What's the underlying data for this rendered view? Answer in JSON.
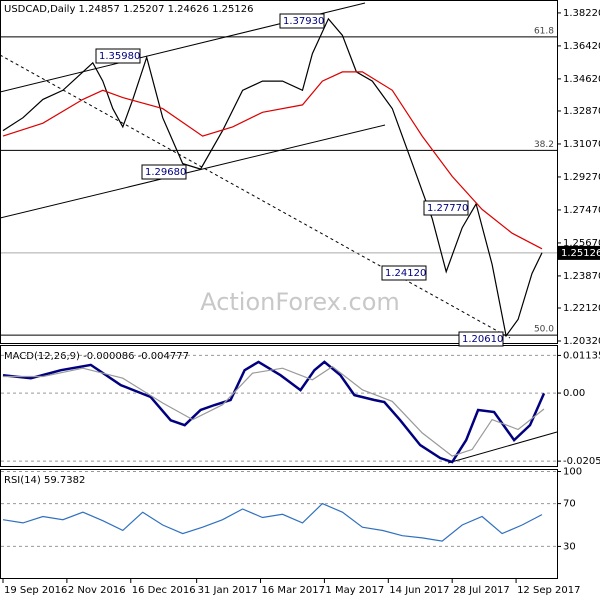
{
  "chart_data": [
    {
      "type": "line",
      "title": "USDCAD,Daily 1.24857 1.25207 1.24626 1.25126",
      "watermark": "ActionForex.com",
      "xlim": [
        -1,
        277.5
      ],
      "ylim": [
        1.2021,
        1.3887
      ],
      "xticks": [
        {
          "value": 0,
          "label": "19 Sep 2016"
        },
        {
          "value": 32,
          "label": "2 Nov 2016"
        },
        {
          "value": 64,
          "label": "16 Dec 2016"
        },
        {
          "value": 97,
          "label": "31 Jan 2017"
        },
        {
          "value": 129,
          "label": "16 Mar 2017"
        },
        {
          "value": 161,
          "label": "1 May 2017"
        },
        {
          "value": 193,
          "label": "14 Jun 2017"
        },
        {
          "value": 225,
          "label": "28 Jul 2017"
        },
        {
          "value": 257,
          "label": "12 Sep 2017"
        }
      ],
      "yticks": [
        {
          "value": 1.3822,
          "label": "1.38220"
        },
        {
          "value": 1.3642,
          "label": "1.36420"
        },
        {
          "value": 1.3462,
          "label": "1.34620"
        },
        {
          "value": 1.3287,
          "label": "1.32870"
        },
        {
          "value": 1.3107,
          "label": "1.31070"
        },
        {
          "value": 1.2927,
          "label": "1.29270"
        },
        {
          "value": 1.2747,
          "label": "1.27470"
        },
        {
          "value": 1.2567,
          "label": "1.25670"
        },
        {
          "value": 1.2387,
          "label": "1.23870"
        },
        {
          "value": 1.2212,
          "label": "1.22120"
        },
        {
          "value": 1.2032,
          "label": "1.20320"
        }
      ],
      "last_price": 1.25126,
      "fib_levels": [
        {
          "value": 1.3691,
          "label": "61.8"
        },
        {
          "value": 1.3072,
          "label": "38.2"
        },
        {
          "value": 1.2064,
          "label": "50.0"
        }
      ],
      "annotations": [
        "1.37930",
        "1.35980",
        "1.29680",
        "1.27770",
        "1.24120",
        "1.20610"
      ],
      "series": [
        {
          "color": "#000000",
          "x": [
            0,
            10,
            20,
            30,
            40,
            45,
            50,
            55,
            60,
            65,
            72,
            80,
            90,
            99,
            110,
            120,
            130,
            140,
            150,
            155,
            163,
            170,
            177,
            185,
            195,
            205,
            215,
            222,
            230,
            237,
            245,
            252,
            258,
            265,
            270
          ],
          "values": [
            1.318,
            1.325,
            1.335,
            1.34,
            1.35,
            1.355,
            1.345,
            1.33,
            1.32,
            1.335,
            1.358,
            1.325,
            1.3,
            1.297,
            1.318,
            1.34,
            1.345,
            1.345,
            1.34,
            1.36,
            1.379,
            1.37,
            1.35,
            1.345,
            1.33,
            1.3,
            1.27,
            1.241,
            1.265,
            1.278,
            1.245,
            1.206,
            1.215,
            1.24,
            1.2513
          ]
        },
        {
          "color": "#dd0000",
          "x": [
            0,
            20,
            40,
            50,
            60,
            80,
            100,
            115,
            130,
            150,
            160,
            170,
            180,
            195,
            210,
            225,
            240,
            255,
            270
          ],
          "values": [
            1.315,
            1.322,
            1.335,
            1.34,
            1.336,
            1.33,
            1.315,
            1.32,
            1.328,
            1.332,
            1.345,
            1.35,
            1.35,
            1.34,
            1.315,
            1.293,
            1.275,
            1.262,
            1.2535
          ]
        }
      ]
    },
    {
      "type": "line",
      "title": "MACD(12,26,9) -0.000086 -0.004777",
      "xlim": [
        -1,
        277.5
      ],
      "ylim": [
        -0.022,
        0.0142
      ],
      "yticks": [
        0.011355,
        {
          "value": 0,
          "label": "0.00"
        },
        -0.020531
      ],
      "series": [
        {
          "color": "#000080",
          "x": [
            0,
            14,
            29,
            44,
            59,
            74,
            84,
            91,
            99,
            106,
            114,
            121,
            128,
            139,
            149,
            156,
            161,
            169,
            176,
            186,
            191,
            199,
            209,
            219,
            225,
            232,
            238,
            246,
            256,
            264,
            271
          ],
          "values": [
            0.0054,
            0.0045,
            0.0069,
            0.0085,
            0.0024,
            -0.0012,
            -0.0082,
            -0.0097,
            -0.0051,
            -0.0036,
            -0.0021,
            0.0069,
            0.0094,
            0.0054,
            0.0009,
            0.0069,
            0.0094,
            0.0054,
            -0.0006,
            -0.0021,
            -0.0027,
            -0.0082,
            -0.0157,
            -0.0196,
            -0.0208,
            -0.0142,
            -0.0051,
            -0.0057,
            -0.0142,
            -0.0097,
            -0.0001
          ]
        },
        {
          "color": "#999999",
          "x": [
            0,
            20,
            40,
            60,
            80,
            95,
            110,
            125,
            140,
            155,
            165,
            180,
            195,
            210,
            225,
            235,
            245,
            258,
            271
          ],
          "values": [
            0.005,
            0.005,
            0.0075,
            0.0045,
            -0.003,
            -0.008,
            -0.0035,
            0.006,
            0.0075,
            0.004,
            0.008,
            0.001,
            -0.0025,
            -0.012,
            -0.019,
            -0.017,
            -0.008,
            -0.011,
            -0.0048
          ]
        }
      ]
    },
    {
      "type": "line",
      "title": "RSI(14) 59.7382",
      "xlim": [
        -1,
        277.5
      ],
      "ylim": [
        0.5,
        101.4
      ],
      "yticks": [
        100,
        70,
        30
      ],
      "series": [
        {
          "color": "#3070c0",
          "x": [
            0,
            10,
            20,
            30,
            40,
            50,
            60,
            70,
            80,
            90,
            100,
            110,
            120,
            130,
            140,
            150,
            160,
            170,
            180,
            190,
            200,
            210,
            220,
            230,
            240,
            250,
            260,
            270
          ],
          "values": [
            55,
            52,
            58,
            55,
            62,
            54,
            45,
            62,
            50,
            42,
            48,
            55,
            65,
            57,
            60,
            52,
            70,
            62,
            48,
            45,
            40,
            38,
            35,
            50,
            58,
            42,
            50,
            59.7
          ]
        }
      ]
    }
  ]
}
